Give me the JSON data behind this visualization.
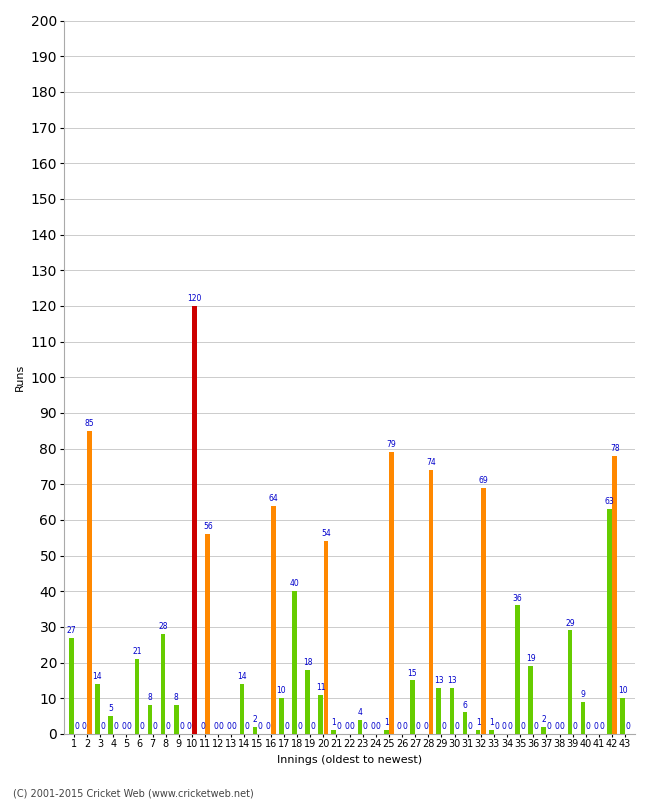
{
  "xlabel": "Innings (oldest to newest)",
  "ylabel": "Runs",
  "footer": "(C) 2001-2015 Cricket Web (www.cricketweb.net)",
  "ylim": [
    0,
    200
  ],
  "yticks": [
    0,
    10,
    20,
    30,
    40,
    50,
    60,
    70,
    80,
    90,
    100,
    110,
    120,
    130,
    140,
    150,
    160,
    170,
    180,
    190,
    200
  ],
  "innings": [
    1,
    2,
    3,
    4,
    5,
    6,
    7,
    8,
    9,
    10,
    11,
    12,
    13,
    14,
    15,
    16,
    17,
    18,
    19,
    20,
    21,
    22,
    23,
    24,
    25,
    26,
    27,
    28,
    29,
    30,
    31,
    32,
    33,
    34,
    35,
    36,
    37,
    38,
    39,
    40,
    41,
    42,
    43
  ],
  "green_values": [
    27,
    0,
    14,
    5,
    0,
    21,
    8,
    28,
    8,
    0,
    0,
    0,
    0,
    14,
    2,
    0,
    10,
    40,
    18,
    11,
    1,
    0,
    4,
    0,
    1,
    0,
    15,
    0,
    13,
    13,
    6,
    1,
    1,
    0,
    36,
    19,
    2,
    0,
    29,
    9,
    0,
    63,
    10
  ],
  "orange_values": [
    0,
    85,
    0,
    0,
    0,
    0,
    0,
    0,
    0,
    120,
    56,
    0,
    0,
    0,
    0,
    64,
    0,
    0,
    0,
    54,
    0,
    0,
    0,
    0,
    79,
    0,
    0,
    74,
    0,
    0,
    0,
    69,
    0,
    0,
    0,
    0,
    0,
    0,
    0,
    0,
    0,
    78,
    0
  ],
  "century_innings": [
    10
  ],
  "bar_color_green": "#66cc00",
  "bar_color_orange": "#ff8800",
  "bar_color_red": "#cc0000",
  "label_color": "#0000cc",
  "background_color": "#ffffff",
  "grid_color": "#cccccc",
  "label_fontsize": 5.5,
  "axis_fontsize": 8,
  "tick_fontsize": 7,
  "bar_width": 0.35,
  "bar_gap": 0.05
}
